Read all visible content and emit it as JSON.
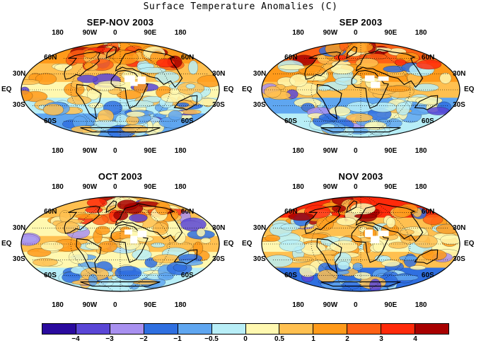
{
  "title": "Surface Temperature Anomalies (C)",
  "panels": [
    {
      "title": "SEP-NOV 2003",
      "pattern": 0
    },
    {
      "title": "SEP 2003",
      "pattern": 1
    },
    {
      "title": "OCT 2003",
      "pattern": 2
    },
    {
      "title": "NOV 2003",
      "pattern": 3
    }
  ],
  "axes": {
    "lon_labels": [
      "180",
      "90W",
      "0",
      "90E",
      "180"
    ],
    "lat_labels_left": [
      "60N",
      "30N",
      "EQ",
      "30S",
      "60S"
    ],
    "lat_labels_right": [
      "60N",
      "30N",
      "EQ",
      "30S",
      "60S"
    ]
  },
  "colorbar": {
    "labels": [
      "-4",
      "-3",
      "-2",
      "-1",
      "-0.5",
      "0",
      "0.5",
      "1",
      "2",
      "3",
      "4"
    ],
    "colors": [
      "#2a0a9e",
      "#5a46d6",
      "#a890f0",
      "#2f6fe0",
      "#5fa6f0",
      "#b8eef7",
      "#fff8b0",
      "#ffc050",
      "#ff9a1a",
      "#ff6014",
      "#ff2a0a",
      "#a80000"
    ]
  }
}
